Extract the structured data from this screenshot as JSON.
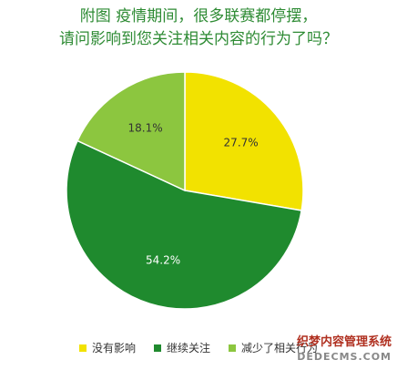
{
  "chart_data": {
    "type": "pie",
    "title_lines": [
      "附图  疫情期间，很多联赛都停摆，",
      "请问影响到您关注相关内容的行为了吗？"
    ],
    "slices": [
      {
        "label": "没有影响",
        "value": 27.7,
        "value_label": "27.7%",
        "color": "#f2e200"
      },
      {
        "label": "继续关注",
        "value": 54.2,
        "value_label": "54.2%",
        "color": "#1f8a2e"
      },
      {
        "label": "减少了相关行为",
        "value": 18.1,
        "value_label": "18.1%",
        "color": "#8cc63f"
      }
    ],
    "legend_position": "bottom"
  },
  "watermark": {
    "line1": "织梦内容管理系统",
    "line2": "DEDECMS.COM"
  }
}
